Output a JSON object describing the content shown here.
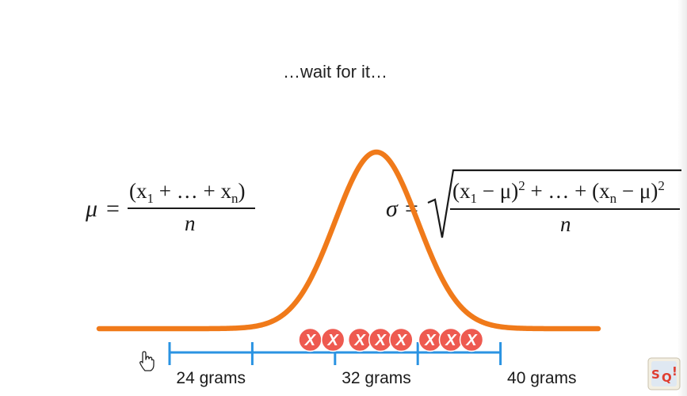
{
  "caption": "…wait for it…",
  "formulas": {
    "mean": {
      "symbol": "μ",
      "numerator_parts": [
        "(x",
        "1",
        " + … + x",
        "n",
        ")"
      ],
      "denominator": "n"
    },
    "std": {
      "symbol": "σ",
      "numerator_parts": [
        "(x",
        "1",
        " − μ)",
        "2",
        " + … + (x",
        "n",
        " − μ)",
        "2"
      ],
      "denominator": "n"
    }
  },
  "axis": {
    "ticks": [
      22,
      26,
      30,
      34,
      38
    ],
    "labels": [
      {
        "value": 24,
        "text": "24 grams"
      },
      {
        "value": 32,
        "text": "32 grams"
      },
      {
        "value": 40,
        "text": "40 grams"
      }
    ]
  },
  "samples": {
    "mark": "X",
    "values": [
      28.8,
      29.9,
      31.2,
      32.2,
      33.2,
      34.6,
      35.6,
      36.6
    ]
  },
  "curve": {
    "mean": 32,
    "sd": 2,
    "color": "#f07a1a"
  },
  "colors": {
    "axis": "#2a93e2",
    "sample_fill": "#ee5a50"
  },
  "icons": {
    "cursor": "hand-pointer-icon",
    "logo": "statquest-logo-icon"
  }
}
